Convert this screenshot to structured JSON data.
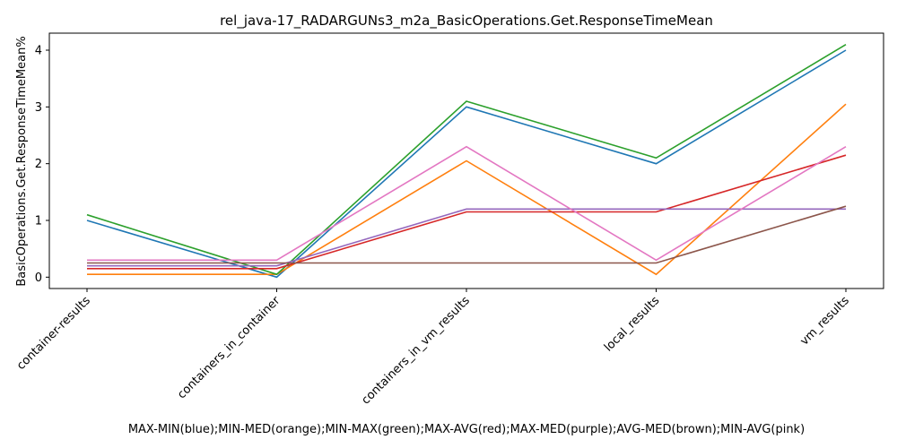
{
  "chart_data": {
    "type": "line",
    "title": "rel_java-17_RADARGUNs3_m2a_BasicOperations.Get.ResponseTimeMean",
    "xlabel": "MAX-MIN(blue);MIN-MED(orange);MIN-MAX(green);MAX-AVG(red);MAX-MED(purple);AVG-MED(brown);MIN-AVG(pink)",
    "ylabel": "BasicOperations.Get.ResponseTimeMean%",
    "categories": [
      "container-results",
      "containers_in_container",
      "containers_in_vm_results",
      "local_results",
      "vm_results"
    ],
    "ylim": [
      -0.2,
      4.3
    ],
    "yticks": [
      0,
      1,
      2,
      3,
      4
    ],
    "grid": false,
    "series": [
      {
        "color": "#1f77b4",
        "values": [
          1.0,
          0.0,
          3.0,
          2.0,
          4.0
        ]
      },
      {
        "color": "#ff7f0e",
        "values": [
          0.05,
          0.05,
          2.05,
          0.05,
          3.05
        ]
      },
      {
        "color": "#2ca02c",
        "values": [
          1.1,
          0.05,
          3.1,
          2.1,
          4.1
        ]
      },
      {
        "color": "#d62728",
        "values": [
          0.15,
          0.15,
          1.15,
          1.15,
          2.15
        ]
      },
      {
        "color": "#9467bd",
        "values": [
          0.2,
          0.2,
          1.2,
          1.2,
          1.2
        ]
      },
      {
        "color": "#8c564b",
        "values": [
          0.25,
          0.25,
          0.25,
          0.25,
          1.25
        ]
      },
      {
        "color": "#e377c2",
        "values": [
          0.3,
          0.3,
          2.3,
          0.3,
          2.3
        ]
      }
    ]
  }
}
